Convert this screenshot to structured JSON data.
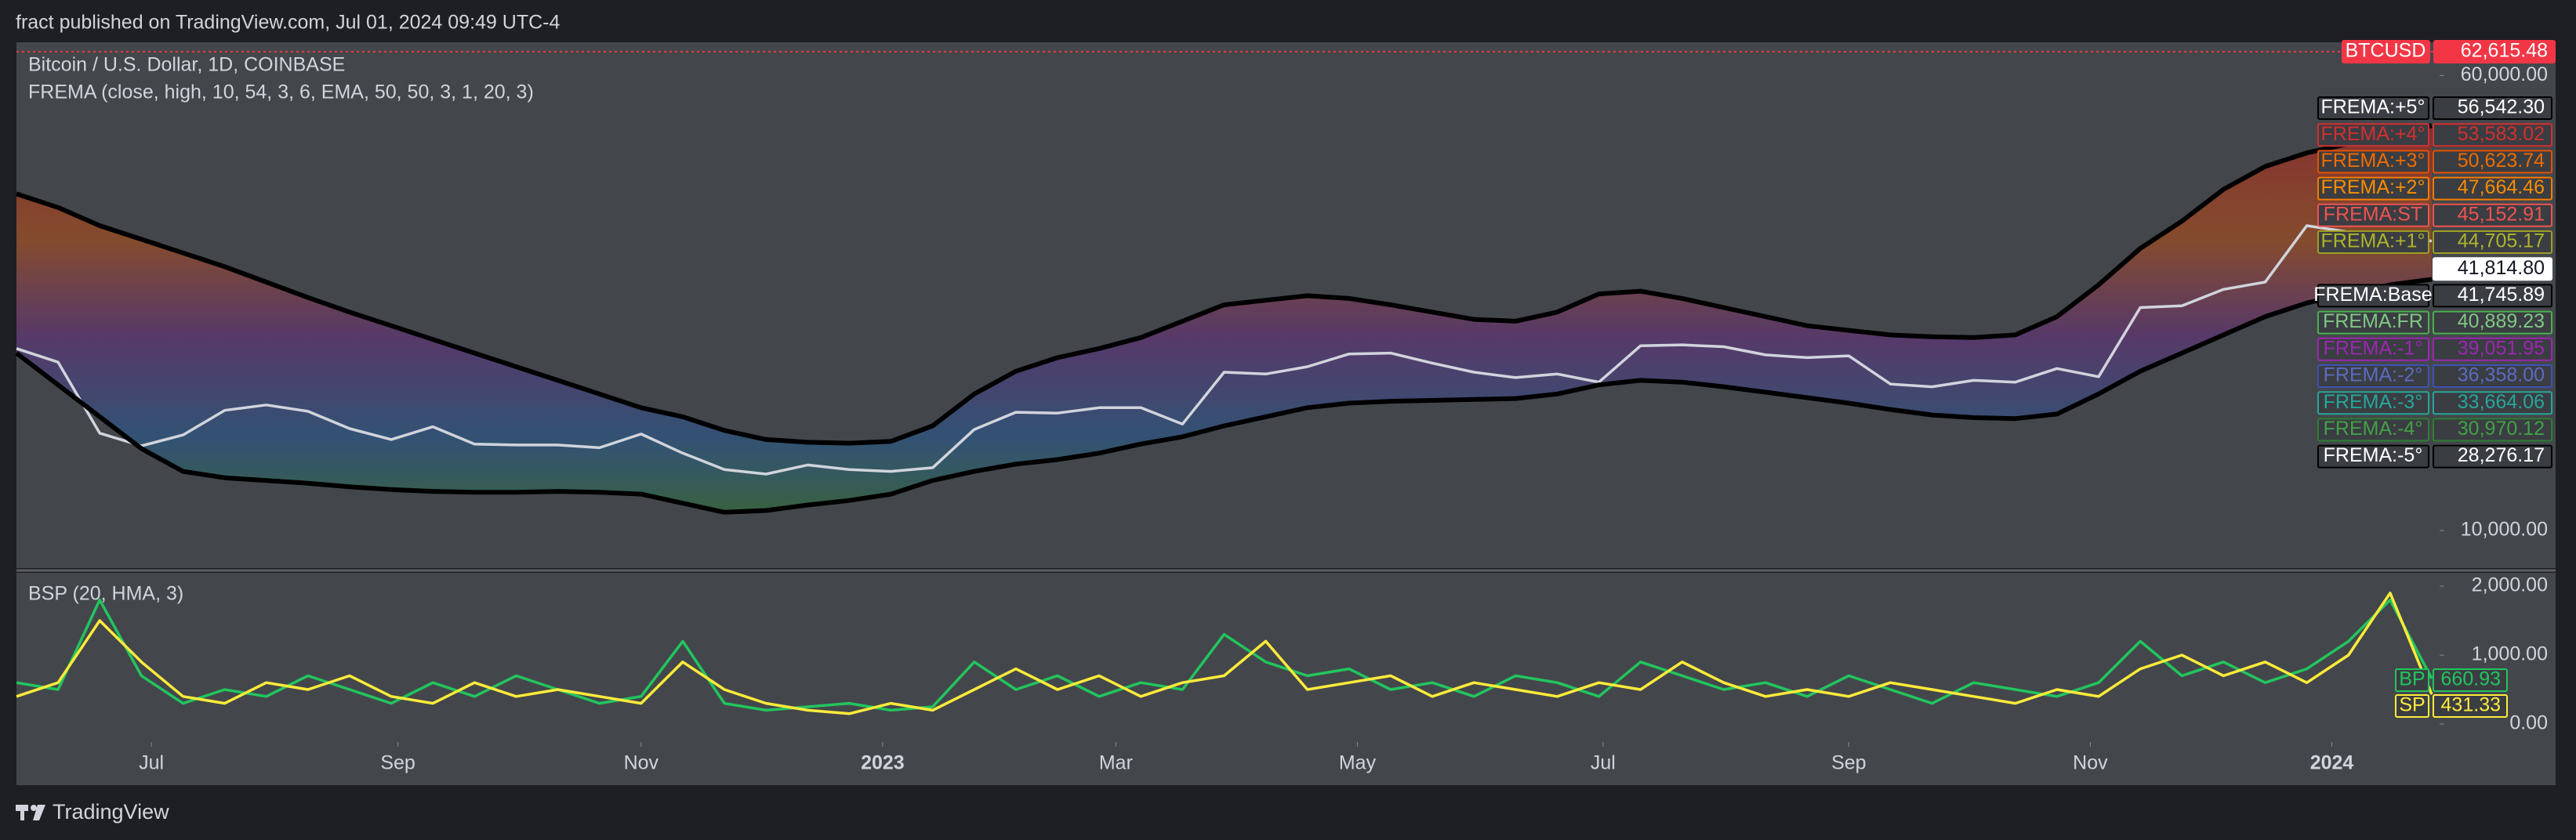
{
  "header": "fract published on TradingView.com, Jul 01, 2024 09:49 UTC-4",
  "footer": "TradingView",
  "chart_data": [
    {
      "type": "line",
      "title": "Bitcoin / U.S. Dollar, 1D, COINBASE",
      "subtitle": "FREMA (close, high, 10, 54, 3, 6, EMA, 50, 50, 3, 1, 20, 3)",
      "xlim": [
        0,
        58
      ],
      "ylim": [
        5870,
        63650
      ],
      "yticks": [
        {
          "value": 10000,
          "label": "10,000.00"
        },
        {
          "value": 60000,
          "label": "60,000.00"
        }
      ],
      "series": [
        {
          "color": "#d1d4dc",
          "values": [
            30000,
            28500,
            20700,
            19300,
            20500,
            23200,
            23800,
            23100,
            21200,
            20000,
            21400,
            19500,
            19400,
            19400,
            19100,
            20600,
            18500,
            16700,
            16200,
            17200,
            16700,
            16500,
            16900,
            21100,
            23000,
            22900,
            23500,
            23500,
            21700,
            27400,
            27200,
            28000,
            29400,
            29500,
            28400,
            27400,
            26800,
            27200,
            26300,
            30300,
            30400,
            30200,
            29300,
            29000,
            29200,
            26100,
            25800,
            26500,
            26300,
            27800,
            26900,
            34500,
            34700,
            36500,
            37300,
            43500,
            42800,
            42500,
            41800
          ]
        },
        {
          "color": "#000000",
          "values": [
            47000,
            45500,
            43500,
            42000,
            40500,
            39000,
            37300,
            35600,
            34000,
            32500,
            31000,
            29500,
            28000,
            26500,
            25000,
            23500,
            22500,
            21000,
            20000,
            19700,
            19600,
            19800,
            21500,
            25000,
            27500,
            29000,
            30000,
            31200,
            33000,
            34800,
            35300,
            35800,
            35500,
            34800,
            34000,
            33200,
            33000,
            34000,
            36000,
            36300,
            35500,
            34500,
            33500,
            32500,
            32000,
            31500,
            31300,
            31200,
            31500,
            33500,
            37000,
            41000,
            44000,
            47500,
            50000,
            51500,
            52500,
            53500,
            54500
          ]
        },
        {
          "color": "#000000",
          "values": [
            29500,
            26000,
            22500,
            19000,
            16500,
            15800,
            15500,
            15200,
            14800,
            14500,
            14300,
            14200,
            14200,
            14300,
            14200,
            14000,
            13000,
            12000,
            12200,
            12800,
            13300,
            14000,
            15500,
            16500,
            17300,
            17800,
            18500,
            19500,
            20300,
            21500,
            22500,
            23500,
            24000,
            24200,
            24300,
            24400,
            24500,
            25000,
            26000,
            26500,
            26300,
            25800,
            25200,
            24600,
            24000,
            23300,
            22700,
            22400,
            22300,
            22800,
            25000,
            27500,
            29500,
            31500,
            33500,
            35000,
            36000,
            37000,
            37600
          ]
        }
      ],
      "last_price": {
        "name": "BTCUSD",
        "value": 62615.48,
        "label": "62,615.48",
        "color": "#f23645"
      },
      "price_labels": [
        {
          "name": "FREMA:+5°",
          "value": 56542.3,
          "label": "56,542.30",
          "color": "#000000",
          "text_color": "#ffffff"
        },
        {
          "name": "FREMA:+4°",
          "value": 53583.02,
          "label": "53,583.02",
          "color": "#d32f2f",
          "text_color": "#d32f2f"
        },
        {
          "name": "FREMA:+3°",
          "value": 50623.74,
          "label": "50,623.74",
          "color": "#e65100",
          "text_color": "#ef6c00"
        },
        {
          "name": "FREMA:+2°",
          "value": 47664.46,
          "label": "47,664.46",
          "color": "#f57c00",
          "text_color": "#fb8c00"
        },
        {
          "name": "FREMA:ST",
          "value": 45152.91,
          "label": "45,152.91",
          "color": "#ef5350",
          "text_color": "#ef5350"
        },
        {
          "name": "FREMA:+1°",
          "value": 44705.17,
          "label": "44,705.17",
          "color": "#9e9d24",
          "text_color": "#afb42b"
        },
        {
          "name": "",
          "value": 41814.8,
          "label": "41,814.80",
          "color": "#ffffff",
          "text_color": "#131722"
        },
        {
          "name": "FREMA:Base",
          "value": 41745.89,
          "label": "41,745.89",
          "color": "#000000",
          "text_color": "#ffffff"
        },
        {
          "name": "FREMA:FR",
          "value": 40889.23,
          "label": "40,889.23",
          "color": "#4caf50",
          "text_color": "#81c784"
        },
        {
          "name": "FREMA:-1°",
          "value": 39051.95,
          "label": "39,051.95",
          "color": "#9c27b0",
          "text_color": "#9c27b0"
        },
        {
          "name": "FREMA:-2°",
          "value": 36358.0,
          "label": "36,358.00",
          "color": "#3f51b5",
          "text_color": "#5c6bc0"
        },
        {
          "name": "FREMA:-3°",
          "value": 33664.06,
          "label": "33,664.06",
          "color": "#26a69a",
          "text_color": "#26a69a"
        },
        {
          "name": "FREMA:-4°",
          "value": 30970.12,
          "label": "30,970.12",
          "color": "#2e7d32",
          "text_color": "#43a047"
        },
        {
          "name": "FREMA:-5°",
          "value": 28276.17,
          "label": "28,276.17",
          "color": "#000000",
          "text_color": "#ffffff"
        }
      ]
    },
    {
      "type": "line",
      "title": "BSP (20, HMA, 3)",
      "xlim": [
        0,
        58
      ],
      "ylim": [
        -261,
        2193
      ],
      "yticks": [
        {
          "value": 0,
          "label": "0.00"
        },
        {
          "value": 1000,
          "label": "1,000.00"
        },
        {
          "value": 2000,
          "label": "2,000.00"
        }
      ],
      "xticks": [
        {
          "value": 3.24,
          "label": "Jul"
        },
        {
          "value": 9.16,
          "label": "Sep"
        },
        {
          "value": 15.0,
          "label": "Nov"
        },
        {
          "value": 20.8,
          "label": "2023"
        },
        {
          "value": 26.4,
          "label": "Mar"
        },
        {
          "value": 32.2,
          "label": "May"
        },
        {
          "value": 38.1,
          "label": "Jul"
        },
        {
          "value": 44.0,
          "label": "Sep"
        },
        {
          "value": 49.8,
          "label": "Nov"
        },
        {
          "value": 55.6,
          "label": "2024"
        }
      ],
      "series": [
        {
          "name": "BP",
          "color": "#22c55e",
          "values": [
            600,
            500,
            1800,
            700,
            300,
            500,
            400,
            700,
            500,
            300,
            600,
            400,
            700,
            500,
            300,
            400,
            1200,
            300,
            200,
            250,
            300,
            200,
            250,
            900,
            500,
            700,
            400,
            600,
            500,
            1300,
            900,
            700,
            800,
            500,
            600,
            400,
            700,
            600,
            400,
            900,
            700,
            500,
            600,
            400,
            700,
            500,
            300,
            600,
            500,
            400,
            600,
            1200,
            700,
            900,
            600,
            800,
            1200,
            1800,
            660.93
          ]
        },
        {
          "name": "SP",
          "color": "#ffeb3b",
          "values": [
            400,
            600,
            1500,
            900,
            400,
            300,
            600,
            500,
            700,
            400,
            300,
            600,
            400,
            500,
            400,
            300,
            900,
            500,
            300,
            200,
            150,
            300,
            200,
            500,
            800,
            500,
            700,
            400,
            600,
            700,
            1200,
            500,
            600,
            700,
            400,
            600,
            500,
            400,
            600,
            500,
            900,
            600,
            400,
            500,
            400,
            600,
            500,
            400,
            300,
            500,
            400,
            800,
            1000,
            700,
            900,
            600,
            1000,
            1900,
            431.33
          ]
        }
      ]
    }
  ]
}
